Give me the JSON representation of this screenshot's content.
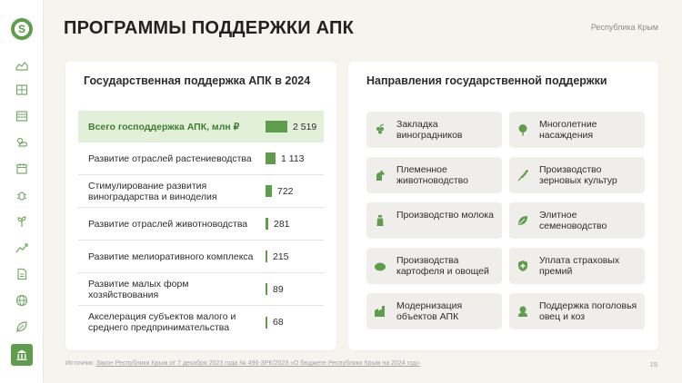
{
  "header": {
    "title": "ПРОГРАММЫ ПОДДЕРЖКИ АПК",
    "region": "Республика Крым"
  },
  "sidebar": {
    "logo_letter": "S",
    "items": [
      {
        "icon": "map-icon"
      },
      {
        "icon": "grid-icon"
      },
      {
        "icon": "field-icon"
      },
      {
        "icon": "weather-icon"
      },
      {
        "icon": "calendar-icon"
      },
      {
        "icon": "bug-icon"
      },
      {
        "icon": "plant-icon"
      },
      {
        "icon": "chart-icon"
      },
      {
        "icon": "document-icon"
      },
      {
        "icon": "globe-icon"
      },
      {
        "icon": "leaf-icon"
      },
      {
        "icon": "bank-icon",
        "active": true
      }
    ]
  },
  "left_card": {
    "title": "Государственная поддержка АПК в 2024",
    "rows": [
      {
        "label": "Всего господдержка АПК, млн ₽",
        "value": "2 519",
        "amount": 2519
      },
      {
        "label": "Развитие отраслей растениеводства",
        "value": "1 113",
        "amount": 1113
      },
      {
        "label": "Стимулирование развития виноградарства и виноделия",
        "value": "722",
        "amount": 722
      },
      {
        "label": "Развитие отраслей животноводства",
        "value": "281",
        "amount": 281
      },
      {
        "label": "Развитие мелиоративного комплекса",
        "value": "215",
        "amount": 215
      },
      {
        "label": "Развитие малых форм хозяйствования",
        "value": "89",
        "amount": 89
      },
      {
        "label": "Акселерация субъектов малого и среднего предпринимательства",
        "value": "68",
        "amount": 68
      }
    ]
  },
  "right_card": {
    "title": "Направления государственной поддержки",
    "tiles": [
      {
        "label": "Закладка виноградников",
        "icon": "grape-icon"
      },
      {
        "label": "Многолетние насаждения",
        "icon": "tree-icon"
      },
      {
        "label": "Племенное животноводство",
        "icon": "horse-icon"
      },
      {
        "label": "Производство зерновых культур",
        "icon": "wheat-icon"
      },
      {
        "label": "Производство молока",
        "icon": "milk-icon"
      },
      {
        "label": "Элитное семеноводство",
        "icon": "seed-leaf-icon"
      },
      {
        "label": "Производства картофеля и овощей",
        "icon": "potato-icon"
      },
      {
        "label": "Уплата страховых премий",
        "icon": "shield-icon"
      },
      {
        "label": "Модернизация объектов АПК",
        "icon": "factory-icon"
      },
      {
        "label": "Поддержка поголовья овец и коз",
        "icon": "sheep-icon"
      }
    ]
  },
  "footer": {
    "source_prefix": "Источник: ",
    "source_link": "Закон Республики Крым от 7 декабря 2023 года № 496-ЗРК/2023 «О бюджете Республики Крым на 2024 год»",
    "page": "15"
  },
  "colors": {
    "accent": "#5f9c4c",
    "total_bg": "#e2efd9",
    "tile_bg": "#f0eeea",
    "page_bg": "#f6f4ef"
  }
}
